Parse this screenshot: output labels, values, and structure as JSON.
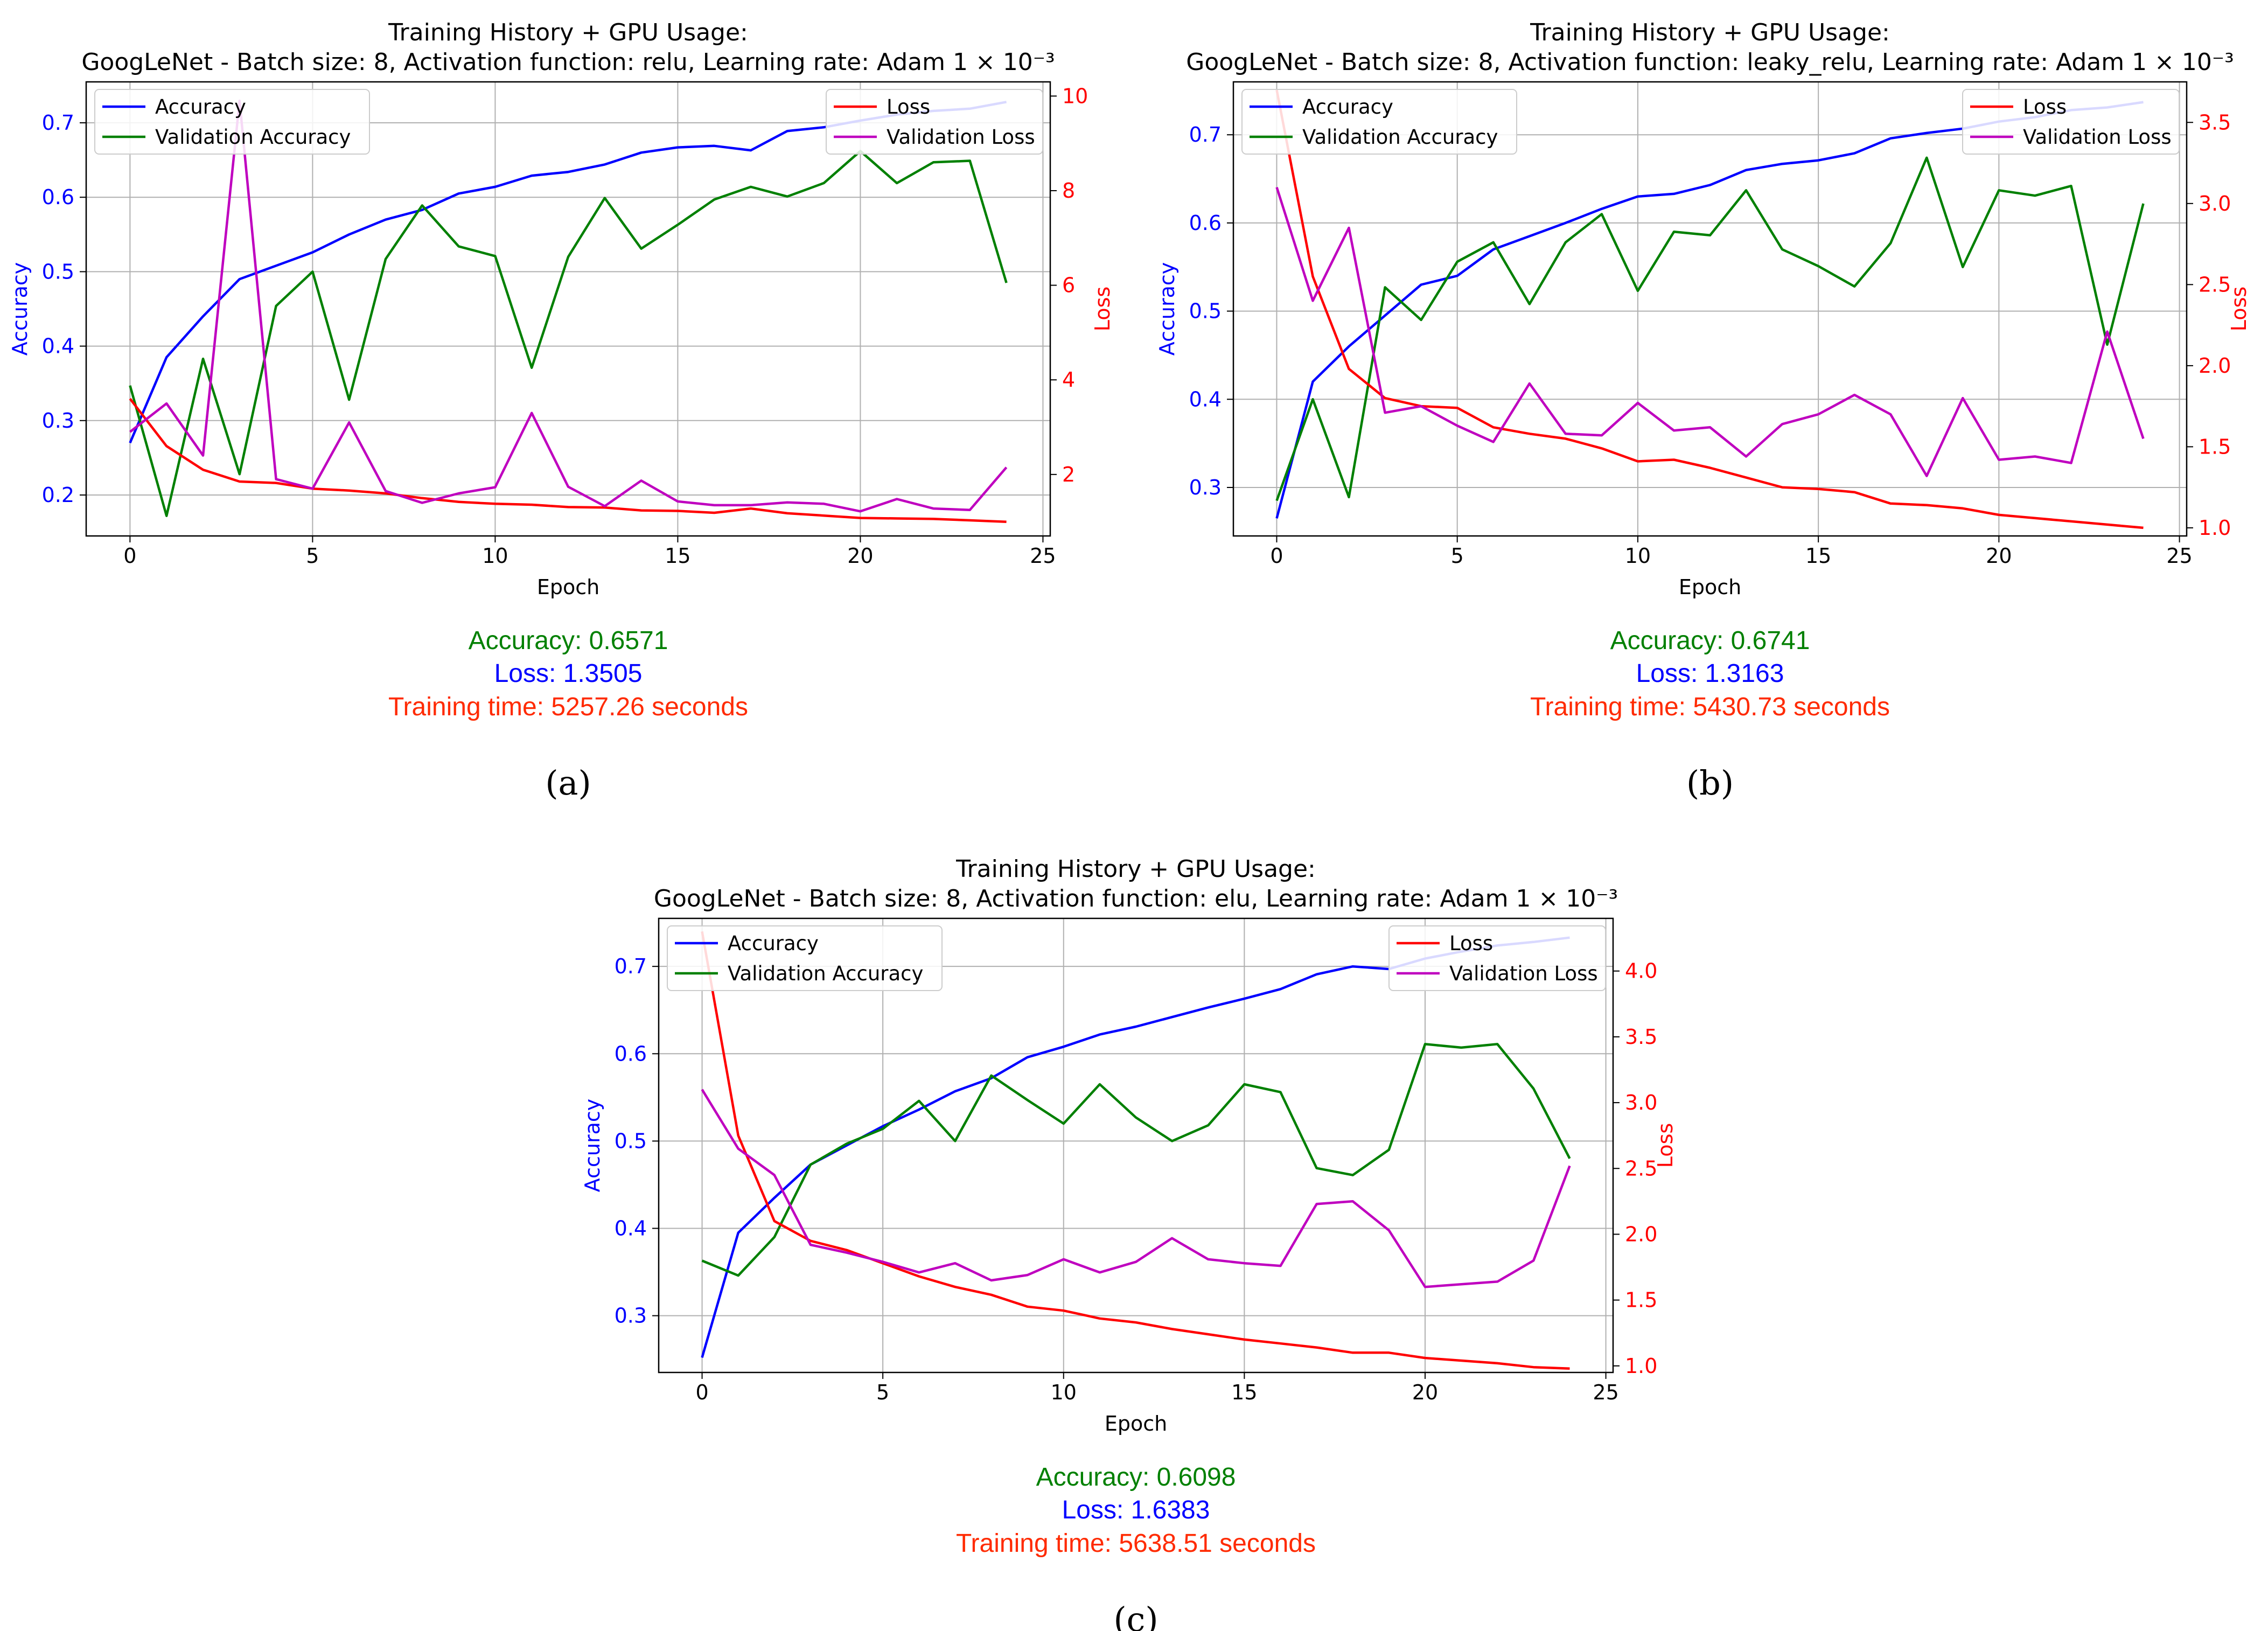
{
  "colors": {
    "accuracy": "#0000ff",
    "validation_accuracy": "#008000",
    "loss": "#ff0000",
    "validation_loss": "#bf00bf",
    "grid": "#b0b0b0"
  },
  "chart_data": [
    {
      "type": "line",
      "panel": "(a)",
      "title": "Training History + GPU Usage:",
      "subtitle": "GoogLeNet - Batch size: 8, Activation function: relu, Learning rate: Adam 1 × 10⁻³",
      "xlabel": "Epoch",
      "ylabel": "Accuracy",
      "y2label": "Loss",
      "xlim": [
        -1.2,
        25.2
      ],
      "ylim": [
        0.145,
        0.755
      ],
      "y2lim": [
        0.7,
        10.3
      ],
      "xticks": [
        "0",
        "5",
        "10",
        "15",
        "20",
        "25"
      ],
      "yticks": [
        "0.2",
        "0.3",
        "0.4",
        "0.5",
        "0.6",
        "0.7"
      ],
      "y2ticks": [
        "2",
        "4",
        "6",
        "8",
        "10"
      ],
      "x": [
        0,
        1,
        2,
        3,
        4,
        5,
        6,
        7,
        8,
        9,
        10,
        11,
        12,
        13,
        14,
        15,
        16,
        17,
        18,
        19,
        20,
        21,
        22,
        23,
        24
      ],
      "series": [
        {
          "name": "Accuracy",
          "axis": "left",
          "values": [
            0.27,
            0.385,
            0.44,
            0.49,
            0.508,
            0.526,
            0.55,
            0.57,
            0.583,
            0.605,
            0.614,
            0.629,
            0.634,
            0.644,
            0.66,
            0.667,
            0.669,
            0.663,
            0.689,
            0.694,
            0.703,
            0.711,
            0.716,
            0.719,
            0.728
          ]
        },
        {
          "name": "Validation Accuracy",
          "axis": "left",
          "values": [
            0.347,
            0.172,
            0.383,
            0.228,
            0.454,
            0.5,
            0.328,
            0.517,
            0.589,
            0.534,
            0.521,
            0.371,
            0.52,
            0.599,
            0.531,
            0.563,
            0.597,
            0.614,
            0.601,
            0.619,
            0.662,
            0.619,
            0.647,
            0.649,
            0.485
          ]
        },
        {
          "name": "Loss",
          "axis": "right",
          "values": [
            3.6,
            2.6,
            2.1,
            1.85,
            1.82,
            1.7,
            1.66,
            1.6,
            1.5,
            1.42,
            1.38,
            1.36,
            1.31,
            1.3,
            1.24,
            1.23,
            1.19,
            1.28,
            1.18,
            1.13,
            1.08,
            1.07,
            1.06,
            1.03,
            1.0
          ]
        },
        {
          "name": "Validation Loss",
          "axis": "right",
          "values": [
            2.9,
            3.5,
            2.4,
            9.9,
            1.9,
            1.7,
            3.1,
            1.65,
            1.4,
            1.6,
            1.73,
            3.3,
            1.74,
            1.33,
            1.87,
            1.43,
            1.35,
            1.35,
            1.41,
            1.38,
            1.22,
            1.48,
            1.28,
            1.25,
            2.15
          ]
        }
      ],
      "legend_left": "upper-left",
      "legend_right": "upper-right",
      "stats": {
        "accuracy": "Accuracy: 0.6571",
        "loss": "Loss: 1.3505",
        "time": "Training time: 5257.26 seconds"
      }
    },
    {
      "type": "line",
      "panel": "(b)",
      "title": "Training History + GPU Usage:",
      "subtitle": "GoogLeNet - Batch size: 8, Activation function: leaky_relu, Learning rate: Adam 1 × 10⁻³",
      "xlabel": "Epoch",
      "ylabel": "Accuracy",
      "y2label": "Loss",
      "xlim": [
        -1.2,
        25.2
      ],
      "ylim": [
        0.245,
        0.76
      ],
      "y2lim": [
        0.95,
        3.75
      ],
      "xticks": [
        "0",
        "5",
        "10",
        "15",
        "20",
        "25"
      ],
      "yticks": [
        "0.3",
        "0.4",
        "0.5",
        "0.6",
        "0.7"
      ],
      "y2ticks": [
        "1.0",
        "1.5",
        "2.0",
        "2.5",
        "3.0",
        "3.5"
      ],
      "x": [
        0,
        1,
        2,
        3,
        4,
        5,
        6,
        7,
        8,
        9,
        10,
        11,
        12,
        13,
        14,
        15,
        16,
        17,
        18,
        19,
        20,
        21,
        22,
        23,
        24
      ],
      "series": [
        {
          "name": "Accuracy",
          "axis": "left",
          "values": [
            0.265,
            0.42,
            0.46,
            0.495,
            0.53,
            0.54,
            0.57,
            0.585,
            0.6,
            0.616,
            0.63,
            0.633,
            0.643,
            0.66,
            0.667,
            0.671,
            0.679,
            0.696,
            0.702,
            0.707,
            0.715,
            0.72,
            0.728,
            0.731,
            0.737
          ]
        },
        {
          "name": "Validation Accuracy",
          "axis": "left",
          "values": [
            0.285,
            0.4,
            0.289,
            0.527,
            0.49,
            0.556,
            0.578,
            0.508,
            0.578,
            0.61,
            0.523,
            0.59,
            0.586,
            0.637,
            0.57,
            0.551,
            0.528,
            0.577,
            0.674,
            0.55,
            0.637,
            0.631,
            0.642,
            0.462,
            0.622
          ]
        },
        {
          "name": "Loss",
          "axis": "right",
          "values": [
            3.7,
            2.55,
            1.98,
            1.8,
            1.75,
            1.74,
            1.62,
            1.58,
            1.55,
            1.49,
            1.41,
            1.42,
            1.37,
            1.31,
            1.25,
            1.24,
            1.22,
            1.15,
            1.14,
            1.12,
            1.08,
            1.06,
            1.04,
            1.02,
            1.0
          ]
        },
        {
          "name": "Validation Loss",
          "axis": "right",
          "values": [
            3.1,
            2.4,
            2.85,
            1.71,
            1.75,
            1.63,
            1.53,
            1.89,
            1.58,
            1.57,
            1.77,
            1.6,
            1.62,
            1.44,
            1.64,
            1.7,
            1.82,
            1.7,
            1.32,
            1.8,
            1.42,
            1.44,
            1.4,
            2.21,
            1.55
          ]
        }
      ],
      "legend_left": "upper-left",
      "legend_right": "upper-right",
      "stats": {
        "accuracy": "Accuracy: 0.6741",
        "loss": "Loss: 1.3163",
        "time": "Training time: 5430.73 seconds"
      }
    },
    {
      "type": "line",
      "panel": "(c)",
      "title": "Training History + GPU Usage:",
      "subtitle": "GoogLeNet - Batch size: 8, Activation function: elu, Learning rate: Adam 1 × 10⁻³",
      "xlabel": "Epoch",
      "ylabel": "Accuracy",
      "y2label": "Loss",
      "xlim": [
        -1.2,
        25.2
      ],
      "ylim": [
        0.235,
        0.755
      ],
      "y2lim": [
        0.95,
        4.4
      ],
      "xticks": [
        "0",
        "5",
        "10",
        "15",
        "20",
        "25"
      ],
      "yticks": [
        "0.3",
        "0.4",
        "0.5",
        "0.6",
        "0.7"
      ],
      "y2ticks": [
        "1.0",
        "1.5",
        "2.0",
        "2.5",
        "3.0",
        "3.5",
        "4.0"
      ],
      "x": [
        0,
        1,
        2,
        3,
        4,
        5,
        6,
        7,
        8,
        9,
        10,
        11,
        12,
        13,
        14,
        15,
        16,
        17,
        18,
        19,
        20,
        21,
        22,
        23,
        24
      ],
      "series": [
        {
          "name": "Accuracy",
          "axis": "left",
          "values": [
            0.252,
            0.395,
            0.435,
            0.473,
            0.495,
            0.517,
            0.536,
            0.557,
            0.572,
            0.596,
            0.608,
            0.622,
            0.631,
            0.642,
            0.653,
            0.663,
            0.674,
            0.691,
            0.7,
            0.697,
            0.709,
            0.717,
            0.724,
            0.728,
            0.733
          ]
        },
        {
          "name": "Validation Accuracy",
          "axis": "left",
          "values": [
            0.363,
            0.346,
            0.39,
            0.473,
            0.497,
            0.514,
            0.546,
            0.5,
            0.575,
            0.547,
            0.52,
            0.565,
            0.527,
            0.5,
            0.518,
            0.565,
            0.556,
            0.469,
            0.461,
            0.49,
            0.611,
            0.607,
            0.611,
            0.56,
            0.48
          ]
        },
        {
          "name": "Loss",
          "axis": "right",
          "values": [
            4.3,
            2.75,
            2.1,
            1.95,
            1.88,
            1.78,
            1.68,
            1.6,
            1.54,
            1.45,
            1.42,
            1.36,
            1.33,
            1.28,
            1.24,
            1.2,
            1.17,
            1.14,
            1.1,
            1.1,
            1.06,
            1.04,
            1.02,
            0.99,
            0.98
          ]
        },
        {
          "name": "Validation Loss",
          "axis": "right",
          "values": [
            3.1,
            2.65,
            2.45,
            1.92,
            1.86,
            1.79,
            1.71,
            1.78,
            1.65,
            1.69,
            1.81,
            1.71,
            1.79,
            1.97,
            1.81,
            1.78,
            1.76,
            2.23,
            2.25,
            2.03,
            1.6,
            1.62,
            1.64,
            1.8,
            2.52
          ]
        }
      ],
      "legend_left": "upper-left",
      "legend_right": "upper-right",
      "stats": {
        "accuracy": "Accuracy: 0.6098",
        "loss": "Loss: 1.6383",
        "time": "Training time: 5638.51 seconds"
      }
    }
  ]
}
